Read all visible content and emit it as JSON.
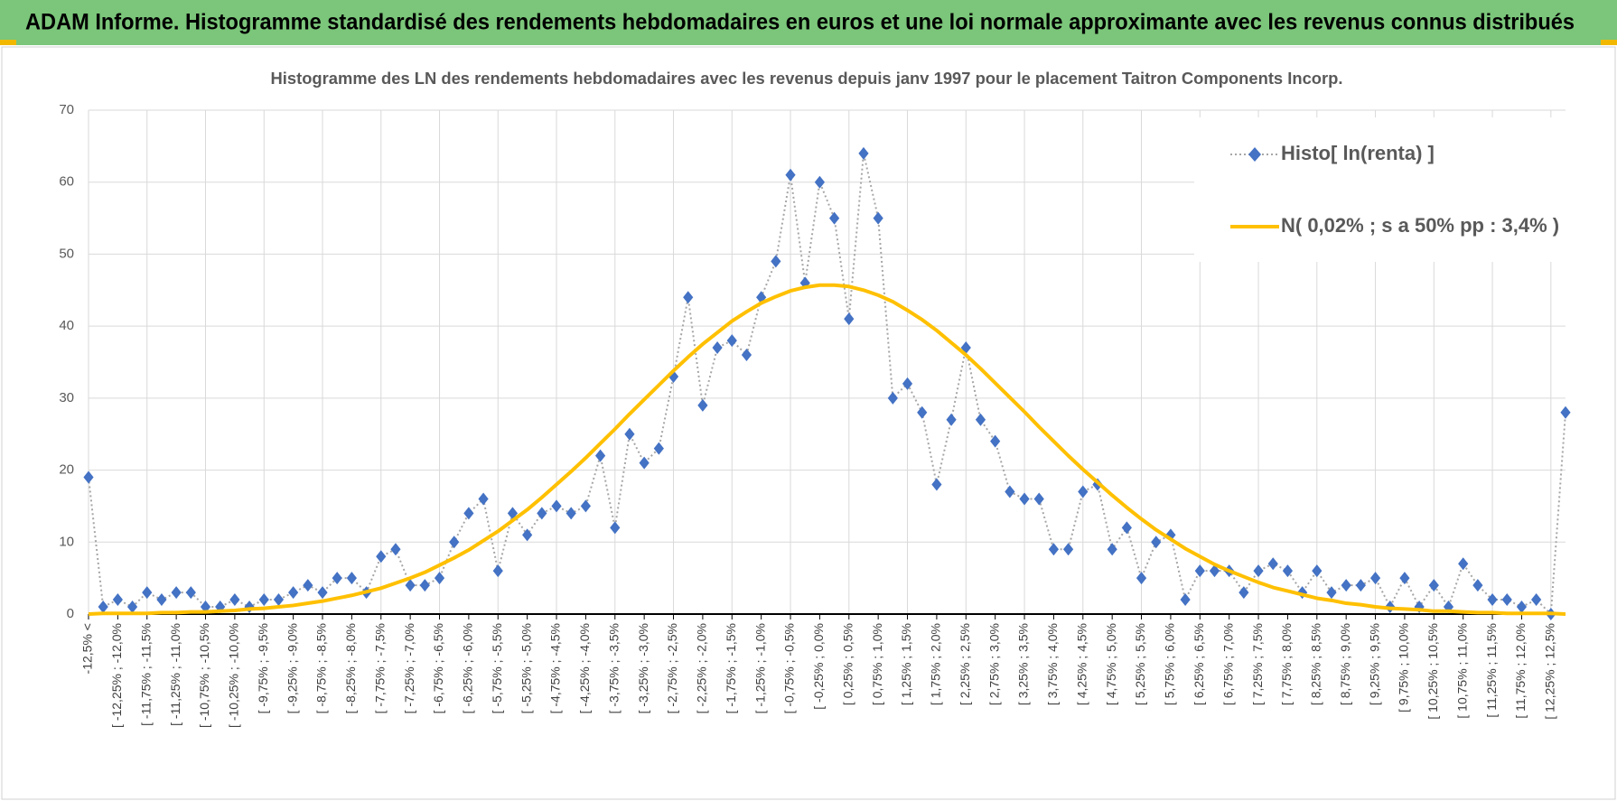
{
  "header": {
    "title": "ADAM Informe. Histogramme standardisé des rendements hebdomadaires en euros et une loi normale approximante avec les revenus connus distribués"
  },
  "chart_data": {
    "type": "line",
    "title": "Histogramme des LN des rendements hebdomadaires avec les revenus depuis janv 1997 pour le placement Taitron Components Incorp.",
    "categories": [
      "-12,5% <",
      null,
      "[ -12,25% ; -12,0%",
      null,
      "[ -11,75% ; -11,5%",
      null,
      "[ -11,25% ; -11,0%",
      null,
      "[ -10,75% ; -10,5%",
      null,
      "[ -10,25% ; -10,0%",
      null,
      "[ -9,75% ; -9,5%",
      null,
      "[ -9,25% ; -9,0%",
      null,
      "[ -8,75% ; -8,5%",
      null,
      "[ -8,25% ; -8,0%",
      null,
      "[ -7,75% ; -7,5%",
      null,
      "[ -7,25% ; -7,0%",
      null,
      "[ -6,75% ; -6,5%",
      null,
      "[ -6,25% ; -6,0%",
      null,
      "[ -5,75% ; -5,5%",
      null,
      "[ -5,25% ; -5,0%",
      null,
      "[ -4,75% ; -4,5%",
      null,
      "[ -4,25% ; -4,0%",
      null,
      "[ -3,75% ; -3,5%",
      null,
      "[ -3,25% ; -3,0%",
      null,
      "[ -2,75% ; -2,5%",
      null,
      "[ -2,25% ; -2,0%",
      null,
      "[ -1,75% ; -1,5%",
      null,
      "[ -1,25% ; -1,0%",
      null,
      "[ -0,75% ; -0,5%",
      null,
      "[ -0,25% ; 0,0%",
      null,
      "[ 0,25% ; 0,5%",
      null,
      "[ 0,75% ; 1,0%",
      null,
      "[ 1,25% ; 1,5%",
      null,
      "[ 1,75% ; 2,0%",
      null,
      "[ 2,25% ; 2,5%",
      null,
      "[ 2,75% ; 3,0%",
      null,
      "[ 3,25% ; 3,5%",
      null,
      "[ 3,75% ; 4,0%",
      null,
      "[ 4,25% ; 4,5%",
      null,
      "[ 4,75% ; 5,0%",
      null,
      "[ 5,25% ; 5,5%",
      null,
      "[ 5,75% ; 6,0%",
      null,
      "[ 6,25% ; 6,5%",
      null,
      "[ 6,75% ; 7,0%",
      null,
      "[ 7,25% ; 7,5%",
      null,
      "[ 7,75% ; 8,0%",
      null,
      "[ 8,25% ; 8,5%",
      null,
      "[ 8,75% ; 9,0%",
      null,
      "[ 9,25% ; 9,5%",
      null,
      "[ 9,75% ; 10,0%",
      null,
      "[ 10,25% ; 10,5%",
      null,
      "[ 10,75% ; 11,0%",
      null,
      "[ 11,25% ; 11,5%",
      null,
      "[ 11,75% ; 12,0%",
      null,
      "[ 12,25% ; 12,5%",
      null
    ],
    "series": [
      {
        "name": "Histo[ ln(renta) ]",
        "color": "#4472c4",
        "values": [
          19,
          1,
          2,
          1,
          3,
          2,
          3,
          3,
          1,
          1,
          2,
          1,
          2,
          2,
          3,
          4,
          3,
          5,
          5,
          3,
          8,
          9,
          4,
          4,
          5,
          10,
          14,
          16,
          6,
          14,
          11,
          14,
          15,
          14,
          15,
          22,
          12,
          25,
          21,
          23,
          33,
          44,
          29,
          37,
          38,
          36,
          44,
          49,
          61,
          46,
          60,
          55,
          41,
          64,
          55,
          30,
          32,
          28,
          18,
          27,
          37,
          27,
          24,
          17,
          16,
          16,
          9,
          9,
          17,
          18,
          9,
          12,
          5,
          10,
          11,
          2,
          6,
          6,
          6,
          3,
          6,
          7,
          6,
          3,
          6,
          3,
          4,
          4,
          5,
          1,
          5,
          1,
          4,
          1,
          7,
          4,
          2,
          2,
          1,
          2,
          0,
          28
        ]
      },
      {
        "name": "N( 0,02% ; s a 50% pp : 3,4% )",
        "color": "#ffc000",
        "values": [
          0.0,
          0.1,
          0.1,
          0.1,
          0.1,
          0.2,
          0.2,
          0.3,
          0.3,
          0.4,
          0.5,
          0.7,
          0.8,
          1.0,
          1.2,
          1.5,
          1.8,
          2.2,
          2.6,
          3.1,
          3.6,
          4.3,
          5.0,
          5.8,
          6.8,
          7.8,
          8.9,
          10.2,
          11.5,
          13.0,
          14.5,
          16.2,
          18.0,
          19.8,
          21.7,
          23.7,
          25.7,
          27.8,
          29.8,
          31.8,
          33.8,
          35.7,
          37.5,
          39.1,
          40.7,
          42.0,
          43.2,
          44.1,
          44.9,
          45.4,
          45.7,
          45.7,
          45.5,
          45.0,
          44.3,
          43.4,
          42.2,
          40.9,
          39.4,
          37.7,
          36.0,
          34.1,
          32.1,
          30.1,
          28.1,
          26.0,
          24.0,
          22.0,
          20.1,
          18.3,
          16.5,
          14.8,
          13.2,
          11.7,
          10.4,
          9.1,
          8.0,
          6.9,
          6.0,
          5.2,
          4.4,
          3.7,
          3.2,
          2.7,
          2.2,
          1.9,
          1.5,
          1.3,
          1.0,
          0.8,
          0.7,
          0.6,
          0.4,
          0.4,
          0.3,
          0.2,
          0.2,
          0.1,
          0.1,
          0.1,
          0.1,
          0.0
        ]
      }
    ],
    "ylim": [
      0,
      70
    ],
    "yticks": [
      0,
      10,
      20,
      30,
      40,
      50,
      60,
      70
    ],
    "grid": true,
    "legend": "upper right"
  }
}
